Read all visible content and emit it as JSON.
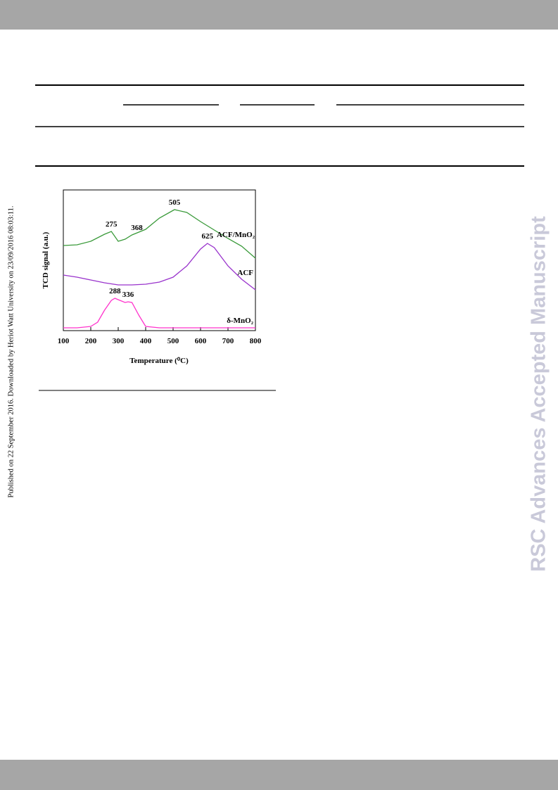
{
  "side_note": "Published on 22 September 2016. Downloaded by Heriot Watt University on 23/09/2016 08:03:11.",
  "watermark": "RSC Advances Accepted Manuscript",
  "chart_data": {
    "type": "line",
    "xlabel": "Temperature (⁰C)",
    "ylabel": "TCD signal (a.u.)",
    "xlim": [
      100,
      800
    ],
    "xticks": [
      100,
      200,
      300,
      400,
      500,
      600,
      700,
      800
    ],
    "ylim": [
      0,
      100
    ],
    "series": [
      {
        "name": "ACF/MnO₂",
        "color": "#3a9a3a",
        "x": [
          100,
          150,
          200,
          250,
          275,
          300,
          325,
          350,
          400,
          450,
          505,
          550,
          600,
          650,
          700,
          750,
          800
        ],
        "values": [
          60.5,
          61,
          63.5,
          68.5,
          70.5,
          63.5,
          65,
          68,
          72,
          80,
          86,
          84,
          77.5,
          71.5,
          65.5,
          60,
          51.5
        ]
      },
      {
        "name": "ACF",
        "color": "#9933cc",
        "x": [
          100,
          150,
          200,
          250,
          300,
          350,
          400,
          450,
          500,
          550,
          600,
          625,
          650,
          700,
          750,
          800
        ],
        "values": [
          39.5,
          38,
          36,
          34,
          32.5,
          32.5,
          33,
          34.5,
          38,
          46,
          58,
          62,
          59,
          46,
          36.5,
          29
        ]
      },
      {
        "name": "δ-MnO₂",
        "color": "#ff33cc",
        "x": [
          100,
          150,
          200,
          225,
          250,
          275,
          288,
          300,
          325,
          336,
          350,
          375,
          400,
          450,
          500,
          600,
          700,
          800
        ],
        "values": [
          2,
          2,
          3,
          6,
          14.5,
          21.5,
          23,
          22,
          20,
          20.5,
          20,
          11,
          3,
          2,
          2,
          2,
          2,
          2
        ]
      }
    ],
    "annotations": [
      {
        "text": "275",
        "x": 275,
        "y": 70.5
      },
      {
        "text": "368",
        "x": 368,
        "y": 68
      },
      {
        "text": "505",
        "x": 505,
        "y": 86
      },
      {
        "text": "625",
        "x": 625,
        "y": 62
      },
      {
        "text": "288",
        "x": 288,
        "y": 23
      },
      {
        "text": "336",
        "x": 336,
        "y": 20.5
      }
    ]
  }
}
